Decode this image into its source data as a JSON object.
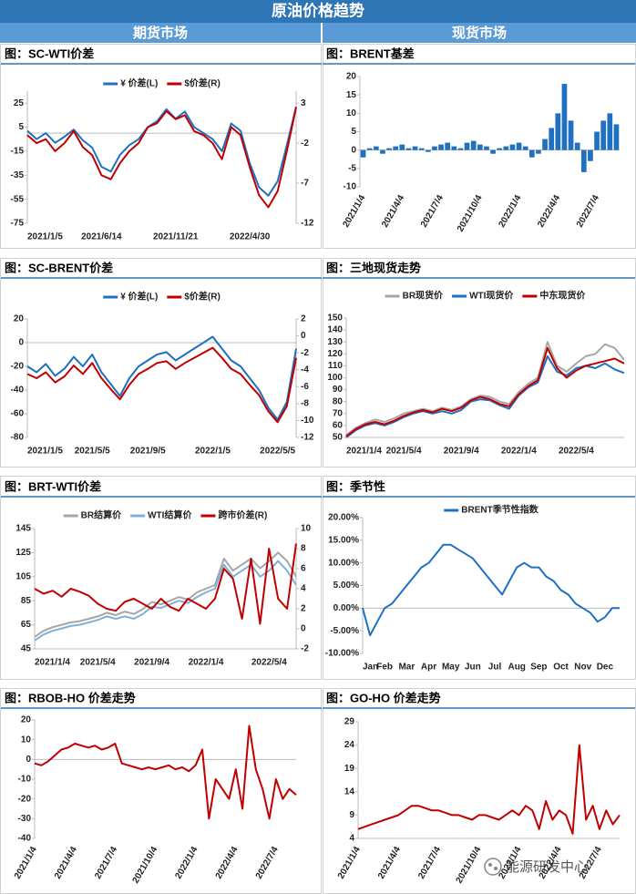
{
  "header": {
    "title": "原油价格趋势",
    "left": "期货市场",
    "right": "现货市场"
  },
  "watermark": "能源研发中心",
  "chart_data": [
    {
      "type": "line",
      "title": "图：SC-WTI价差",
      "legend": "top",
      "categories": [
        "2021/1/5",
        null,
        null,
        null,
        null,
        null,
        null,
        null,
        "2021/6/14",
        null,
        null,
        null,
        null,
        null,
        null,
        null,
        "2021/11/21",
        null,
        null,
        null,
        null,
        null,
        null,
        null,
        "2022/4/30",
        null,
        null,
        null,
        null,
        null
      ],
      "series": [
        {
          "name": "¥ 价差(L)",
          "color": "#1f70c1",
          "values": [
            2,
            -5,
            0,
            -8,
            -3,
            3,
            -6,
            -12,
            -28,
            -32,
            -18,
            -10,
            -5,
            5,
            10,
            20,
            12,
            18,
            5,
            0,
            -5,
            -15,
            8,
            2,
            -25,
            -45,
            -52,
            -40,
            -10,
            22
          ]
        },
        {
          "name": "$价差(R)",
          "color": "#c00000",
          "axis": "y2",
          "values": [
            -1,
            -2,
            -1.5,
            -3,
            -2,
            -0.5,
            -2.5,
            -3.5,
            -6,
            -6.5,
            -4.5,
            -3,
            -2,
            0,
            0.5,
            2,
            1,
            1.5,
            -0.5,
            -1,
            -2,
            -4,
            0,
            -1,
            -5,
            -8.5,
            -10,
            -8,
            -3,
            2.5
          ]
        }
      ],
      "ylim": [
        -75,
        35
      ],
      "yticks": [
        25,
        5,
        -15,
        -35,
        -55,
        -75
      ],
      "y2lim": [
        -12,
        4.5
      ],
      "y2ticks": [
        3,
        -2,
        -7,
        -12
      ]
    },
    {
      "type": "bar",
      "title": "图：BRENT基差",
      "color": "#1f70c1",
      "categories": [
        "2021/1/4",
        null,
        null,
        null,
        null,
        null,
        "2021/4/4",
        null,
        null,
        null,
        null,
        null,
        "2021/7/4",
        null,
        null,
        null,
        null,
        null,
        "2021/10/4",
        null,
        null,
        null,
        null,
        null,
        "2022/1/4",
        null,
        null,
        null,
        null,
        null,
        "2022/4/4",
        null,
        null,
        null,
        null,
        null,
        "2022/7/4",
        null,
        null,
        null
      ],
      "values": [
        -2,
        0.5,
        1,
        -1,
        0.5,
        1,
        1.5,
        0.5,
        1,
        0.5,
        -0.5,
        1,
        1.5,
        2,
        1,
        0.5,
        2,
        2.5,
        1.5,
        1,
        -1,
        0.5,
        1,
        1.5,
        2,
        1,
        -2,
        -1,
        3,
        6,
        10,
        18,
        8,
        2,
        -6,
        -3,
        5,
        8,
        10,
        7
      ],
      "ylim": [
        -10,
        20
      ],
      "yticks": [
        -10,
        -5,
        0,
        5,
        10,
        15,
        20
      ]
    },
    {
      "type": "line",
      "title": "图：SC-BRENT价差",
      "legend": "top",
      "categories": [
        "2021/1/5",
        null,
        null,
        null,
        null,
        null,
        null,
        "2021/5/5",
        null,
        null,
        null,
        null,
        null,
        "2021/9/5",
        null,
        null,
        null,
        null,
        null,
        null,
        "2022/1/5",
        null,
        null,
        null,
        null,
        null,
        null,
        "2022/5/5",
        null,
        null
      ],
      "series": [
        {
          "name": "¥ 价差(L)",
          "color": "#1f70c1",
          "values": [
            -20,
            -25,
            -18,
            -28,
            -22,
            -12,
            -20,
            -10,
            -25,
            -35,
            -45,
            -30,
            -20,
            -15,
            -10,
            -8,
            -15,
            -10,
            -5,
            0,
            5,
            -5,
            -15,
            -20,
            -30,
            -40,
            -55,
            -65,
            -50,
            -5
          ]
        },
        {
          "name": "$价差(R)",
          "color": "#c00000",
          "axis": "y2",
          "values": [
            -4.5,
            -5,
            -4.3,
            -5.5,
            -4.8,
            -3.5,
            -4.5,
            -3.2,
            -5,
            -6.3,
            -7.5,
            -5.8,
            -4.5,
            -3.9,
            -3.2,
            -3,
            -3.9,
            -3.2,
            -2.6,
            -2,
            -1.4,
            -2.6,
            -3.9,
            -4.5,
            -5.8,
            -7,
            -8.9,
            -10.2,
            -8.3,
            -2.6
          ]
        }
      ],
      "ylim": [
        -80,
        20
      ],
      "yticks": [
        20,
        0,
        -20,
        -40,
        -60,
        -80
      ],
      "y2lim": [
        -12,
        2
      ],
      "y2ticks": [
        2,
        0,
        -2,
        -4,
        -6,
        -8,
        -10,
        -12
      ]
    },
    {
      "type": "line",
      "title": "图：三地现货走势",
      "legend": "top",
      "categories": [
        "2021/1/4",
        null,
        null,
        null,
        null,
        null,
        "2021/5/4",
        null,
        null,
        null,
        null,
        null,
        "2021/9/4",
        null,
        null,
        null,
        null,
        null,
        "2022/1/4",
        null,
        null,
        null,
        null,
        null,
        "2022/5/4",
        null,
        null,
        null,
        null,
        null
      ],
      "series": [
        {
          "name": "BR现货价",
          "color": "#a6a6a6",
          "values": [
            52,
            58,
            62,
            65,
            63,
            66,
            70,
            72,
            74,
            72,
            75,
            73,
            76,
            82,
            85,
            84,
            80,
            78,
            88,
            95,
            100,
            130,
            110,
            105,
            112,
            118,
            120,
            128,
            125,
            115
          ]
        },
        {
          "name": "WTI现货价",
          "color": "#1f70c1",
          "values": [
            50,
            56,
            60,
            62,
            60,
            63,
            67,
            70,
            72,
            70,
            72,
            70,
            73,
            80,
            82,
            81,
            77,
            74,
            85,
            92,
            96,
            118,
            105,
            102,
            108,
            110,
            108,
            112,
            107,
            104
          ]
        },
        {
          "name": "中东现货价",
          "color": "#c00000",
          "values": [
            51,
            57,
            61,
            63,
            61,
            64,
            68,
            71,
            73,
            71,
            74,
            72,
            75,
            81,
            84,
            82,
            78,
            76,
            86,
            93,
            98,
            125,
            108,
            100,
            106,
            110,
            112,
            114,
            116,
            112
          ]
        }
      ],
      "ylim": [
        50,
        150
      ],
      "yticks": [
        50,
        60,
        70,
        80,
        90,
        100,
        110,
        120,
        130,
        140,
        150
      ]
    },
    {
      "type": "line",
      "title": "图：BRT-WTI价差",
      "legend": "top",
      "categories": [
        "2021/1/4",
        null,
        null,
        null,
        null,
        null,
        null,
        "2021/5/4",
        null,
        null,
        null,
        null,
        null,
        "2021/9/4",
        null,
        null,
        null,
        null,
        null,
        "2022/1/4",
        null,
        null,
        null,
        null,
        null,
        null,
        "2022/5/4",
        null,
        null,
        null
      ],
      "series": [
        {
          "name": "BR结算价",
          "color": "#a6a6a6",
          "values": [
            55,
            60,
            63,
            65,
            67,
            68,
            70,
            72,
            75,
            73,
            76,
            74,
            78,
            84,
            82,
            85,
            88,
            86,
            92,
            95,
            98,
            120,
            110,
            115,
            120,
            112,
            118,
            125,
            118,
            105
          ]
        },
        {
          "name": "WTI结算价",
          "color": "#7fb0d8",
          "values": [
            52,
            57,
            60,
            62,
            64,
            65,
            67,
            69,
            72,
            70,
            72,
            70,
            74,
            80,
            79,
            82,
            85,
            83,
            88,
            92,
            95,
            115,
            105,
            110,
            115,
            105,
            110,
            118,
            110,
            98
          ]
        },
        {
          "name": "跨市价差(R)",
          "color": "#c00000",
          "axis": "y2",
          "values": [
            4,
            3.5,
            3.8,
            3.2,
            4,
            3.7,
            3.3,
            2.5,
            2,
            1.8,
            2.7,
            3,
            2.5,
            2,
            3,
            2.2,
            1.8,
            3,
            2.5,
            2,
            3,
            6,
            5,
            1,
            7,
            0.5,
            8,
            3,
            2,
            8.5
          ]
        }
      ],
      "ylim": [
        45,
        145
      ],
      "yticks": [
        45,
        65,
        85,
        105,
        125,
        145
      ],
      "y2lim": [
        -2,
        10
      ],
      "y2ticks": [
        -2,
        0,
        2,
        4,
        6,
        8,
        10
      ]
    },
    {
      "type": "line",
      "title": "图：季节性",
      "legend": "top",
      "categories": [
        "Jan",
        null,
        null,
        "Feb",
        null,
        null,
        "Mar",
        null,
        null,
        "Apr",
        null,
        null,
        "May",
        null,
        null,
        "Jun",
        null,
        null,
        "Jul",
        null,
        null,
        "Aug",
        null,
        null,
        "Sep",
        null,
        null,
        "Oct",
        null,
        null,
        "Nov",
        null,
        null,
        "Dec",
        null,
        null
      ],
      "series": [
        {
          "name": "BRENT季节性指数",
          "color": "#1f70c1",
          "values": [
            0,
            -6,
            -3,
            0,
            1,
            3,
            5,
            7,
            9,
            10,
            12,
            14,
            14,
            13,
            12,
            11,
            9,
            7,
            5,
            3,
            6,
            9,
            10,
            9,
            9,
            7,
            6,
            4,
            3,
            1,
            0,
            -1,
            -3,
            -2,
            0,
            0
          ]
        }
      ],
      "ylim": [
        -10,
        20
      ],
      "yticks": [
        {
          "value": 20,
          "label": "20.00%"
        },
        {
          "value": 15,
          "label": "15.00%"
        },
        {
          "value": 10,
          "label": "10.00%"
        },
        {
          "value": 5,
          "label": "5.00%"
        },
        {
          "value": 0,
          "label": "0.00%"
        },
        {
          "value": -5,
          "label": "-5.00%"
        },
        {
          "value": -10,
          "label": "-10.00%"
        }
      ]
    },
    {
      "type": "line",
      "title": "图：RBOB-HO 价差走势",
      "categories": [
        "2021/1/4",
        null,
        null,
        null,
        null,
        null,
        "2021/4/4",
        null,
        null,
        null,
        null,
        null,
        "2021/7/4",
        null,
        null,
        null,
        null,
        null,
        "2021/10/4",
        null,
        null,
        null,
        null,
        null,
        "2022/1/4",
        null,
        null,
        null,
        null,
        null,
        "2022/4/4",
        null,
        null,
        null,
        null,
        null,
        "2022/7/4",
        null,
        null,
        null
      ],
      "series": [
        {
          "color": "#c00000",
          "values": [
            -2,
            -3,
            -1,
            2,
            5,
            6,
            8,
            7,
            6,
            7,
            5,
            6,
            8,
            -2,
            -3,
            -4,
            -5,
            -4,
            -5,
            -4,
            -3,
            -5,
            -4,
            -6,
            -3,
            5,
            -30,
            -10,
            -15,
            -20,
            -5,
            -25,
            17,
            -5,
            -15,
            -30,
            -10,
            -20,
            -15,
            -18
          ]
        }
      ],
      "ylim": [
        -40,
        20
      ],
      "yticks": [
        20,
        10,
        0,
        -10,
        -20,
        -30,
        -40
      ]
    },
    {
      "type": "line",
      "title": "图：GO-HO 价差走势",
      "categories": [
        "2021/1/4",
        null,
        null,
        null,
        null,
        null,
        "2021/4/4",
        null,
        null,
        null,
        null,
        null,
        "2021/7/4",
        null,
        null,
        null,
        null,
        null,
        "2021/10/4",
        null,
        null,
        null,
        null,
        null,
        "2022/1/4",
        null,
        null,
        null,
        null,
        null,
        "2022/4/4",
        null,
        null,
        null,
        null,
        null,
        "2022/7/4",
        null,
        null,
        null
      ],
      "series": [
        {
          "color": "#c00000",
          "values": [
            6,
            6.5,
            7,
            7.5,
            8,
            8.5,
            9,
            10,
            11,
            11,
            10.5,
            10,
            10,
            9.5,
            9,
            9,
            8.5,
            8,
            9,
            9,
            8.5,
            8,
            9,
            10,
            9,
            11,
            10,
            6,
            12,
            8,
            10,
            9,
            5,
            24,
            8,
            11,
            6,
            10,
            7,
            9
          ]
        }
      ],
      "ylim": [
        4,
        29
      ],
      "yticks": [
        4,
        9,
        14,
        19,
        24,
        29
      ]
    }
  ]
}
